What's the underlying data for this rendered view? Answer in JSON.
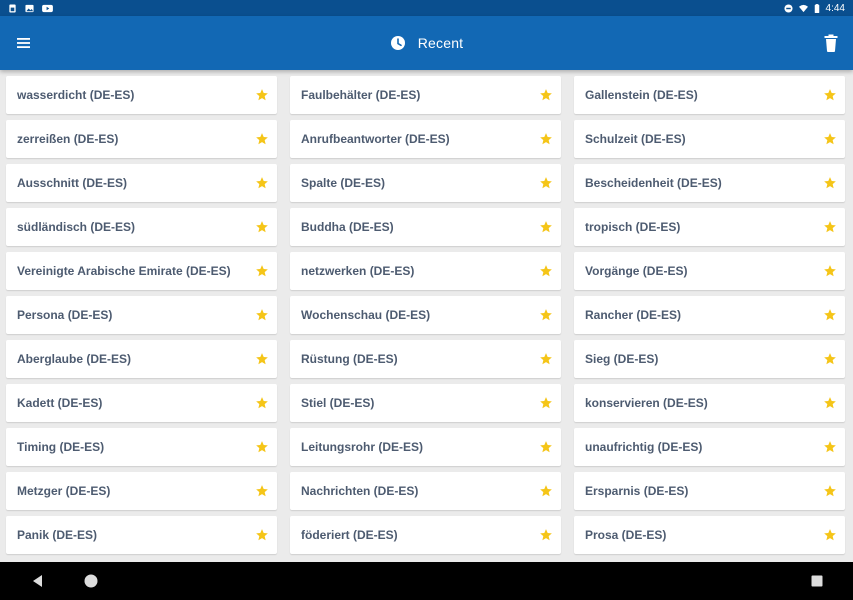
{
  "status": {
    "time": "4:44",
    "left_icons": [
      "sim-icon",
      "image-icon",
      "youtube-icon"
    ],
    "right_icons": [
      "do-not-disturb-icon",
      "wifi-icon",
      "battery-icon"
    ]
  },
  "appbar": {
    "title": "Recent",
    "title_icon": "clock-icon",
    "menu_icon": "hamburger-menu-icon",
    "action_icon": "trash-icon"
  },
  "colors": {
    "statusbar": "#0a4f8f",
    "appbar": "#1268b4",
    "background": "#ebebeb",
    "text": "#4d5b70",
    "star": "#f5c518"
  },
  "columns": [
    [
      "wasserdicht (DE-ES)",
      "zerreißen (DE-ES)",
      "Ausschnitt (DE-ES)",
      "südländisch (DE-ES)",
      "Vereinigte Arabische Emirate (DE-ES)",
      "Persona (DE-ES)",
      "Aberglaube (DE-ES)",
      "Kadett (DE-ES)",
      "Timing (DE-ES)",
      "Metzger (DE-ES)",
      "Panik (DE-ES)"
    ],
    [
      "Faulbehälter (DE-ES)",
      "Anrufbeantworter (DE-ES)",
      "Spalte (DE-ES)",
      "Buddha (DE-ES)",
      "netzwerken (DE-ES)",
      "Wochenschau (DE-ES)",
      "Rüstung (DE-ES)",
      "Stiel (DE-ES)",
      "Leitungsrohr (DE-ES)",
      "Nachrichten (DE-ES)",
      "föderiert (DE-ES)"
    ],
    [
      "Gallenstein (DE-ES)",
      "Schulzeit (DE-ES)",
      "Bescheidenheit (DE-ES)",
      "tropisch (DE-ES)",
      "Vorgänge (DE-ES)",
      "Rancher (DE-ES)",
      "Sieg (DE-ES)",
      "konservieren (DE-ES)",
      "unaufrichtig (DE-ES)",
      "Ersparnis (DE-ES)",
      "Prosa (DE-ES)"
    ]
  ],
  "navbar": {
    "buttons": [
      "back-icon",
      "home-icon",
      "recents-icon"
    ]
  }
}
